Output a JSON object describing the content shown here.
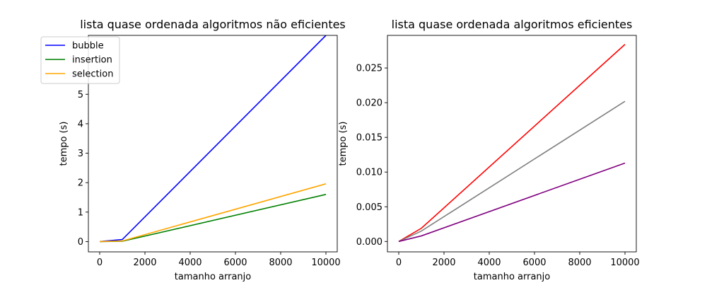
{
  "chart_data": [
    {
      "type": "line",
      "title": "lista quase ordenada algoritmos não eficientes",
      "xlabel": "tamanho arranjo",
      "ylabel": "tempo (s)",
      "x": [
        0,
        1000,
        10000
      ],
      "xlim": [
        -500,
        10500
      ],
      "ylim": [
        -0.35,
        7.0
      ],
      "xticks": [
        0,
        2000,
        4000,
        6000,
        8000,
        10000
      ],
      "yticks": [
        0,
        1,
        2,
        3,
        4,
        5
      ],
      "legend": "top-left",
      "series": [
        {
          "name": "bubble",
          "color": "#0000ff",
          "values": [
            0.0,
            0.07,
            7.0
          ]
        },
        {
          "name": "insertion",
          "color": "#008000",
          "values": [
            0.0,
            0.01,
            1.6
          ]
        },
        {
          "name": "selection",
          "color": "#ffa500",
          "values": [
            0.0,
            0.02,
            1.96
          ]
        }
      ]
    },
    {
      "type": "line",
      "title": "lista quase ordenada algoritmos eficientes",
      "xlabel": "tamanho arranjo",
      "ylabel": "tempo (s)",
      "x": [
        0,
        1000,
        10000
      ],
      "xlim": [
        -500,
        10500
      ],
      "ylim": [
        -0.0015,
        0.0297
      ],
      "xticks": [
        0,
        2000,
        4000,
        6000,
        8000,
        10000
      ],
      "yticks": [
        0.0,
        0.005,
        0.01,
        0.015,
        0.02,
        0.025
      ],
      "series": [
        {
          "color": "#ff0000",
          "values": [
            0.0,
            0.0019,
            0.0284
          ]
        },
        {
          "color": "#808080",
          "values": [
            0.0,
            0.0015,
            0.0202
          ]
        },
        {
          "color": "#800080",
          "values": [
            0.0,
            0.0008,
            0.0113
          ]
        }
      ]
    }
  ]
}
